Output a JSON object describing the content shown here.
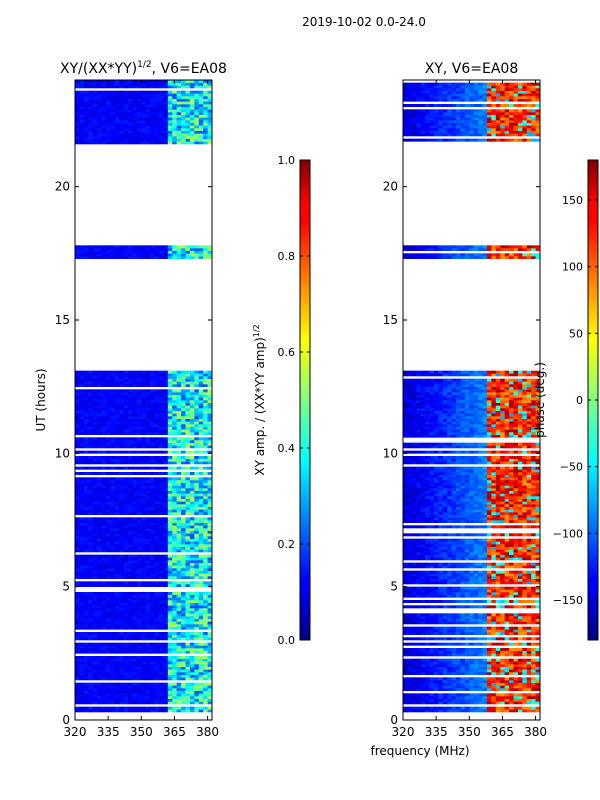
{
  "suptitle": "2019-10-02 0.0-24.0",
  "xlabel": "frequency (MHz)",
  "colors": {
    "background": "#ffffff",
    "blank_row": "#ffffff",
    "axis": "#000000"
  },
  "chart_data": [
    {
      "type": "heatmap",
      "id": "amp",
      "title_main": "XY/(XX*YY)",
      "title_exp": "1/2",
      "title_tail": ", V6=EA08",
      "xlabel": "",
      "ylabel": "UT (hours)",
      "xlim": [
        320,
        382
      ],
      "ylim": [
        0,
        24
      ],
      "xticks": [
        320,
        335,
        350,
        365,
        380
      ],
      "yticks": [
        0,
        5,
        10,
        15,
        20
      ],
      "colormap": "jet",
      "colorbar": {
        "label_main": "XY amp. / (XX*YY amp)",
        "label_exp": "1/2",
        "min": 0.0,
        "max": 1.0,
        "ticks": [
          "0.0",
          "0.2",
          "0.4",
          "0.6",
          "0.8",
          "1.0"
        ],
        "tick_values": [
          0.0,
          0.2,
          0.4,
          0.6,
          0.8,
          1.0
        ]
      },
      "data_ranges": [
        [
          0.3,
          0.95
        ],
        [
          1.0,
          9.4
        ],
        [
          9.6,
          13.0
        ],
        [
          17.3,
          17.8
        ],
        [
          21.6,
          24.0
        ]
      ],
      "low_band_value": 0.12,
      "high_band_start_mhz": 362,
      "high_band_value_range": [
        0.2,
        0.55
      ]
    },
    {
      "type": "heatmap",
      "id": "phase",
      "title_main": "XY, V6=EA08",
      "xlabel": "",
      "ylabel": "phase (deg.)",
      "xlim": [
        320,
        382
      ],
      "ylim": [
        0,
        24
      ],
      "xticks": [
        320,
        335,
        350,
        365,
        380
      ],
      "yticks": [
        0,
        5,
        10,
        15,
        20
      ],
      "colormap": "jet",
      "colorbar": {
        "min": -180,
        "max": 180,
        "ticks": [
          "−150",
          "−100",
          "−50",
          "0",
          "50",
          "100",
          "150"
        ],
        "tick_values": [
          -150,
          -100,
          -50,
          0,
          50,
          100,
          150
        ]
      },
      "data_ranges": [
        [
          0.3,
          0.95
        ],
        [
          1.0,
          9.4
        ],
        [
          9.6,
          13.0
        ],
        [
          17.3,
          17.8
        ],
        [
          21.6,
          24.0
        ]
      ],
      "phase_low_range": [
        -150,
        -90
      ],
      "phase_high_range": [
        80,
        170
      ],
      "phase_transition_mhz": 357
    }
  ]
}
